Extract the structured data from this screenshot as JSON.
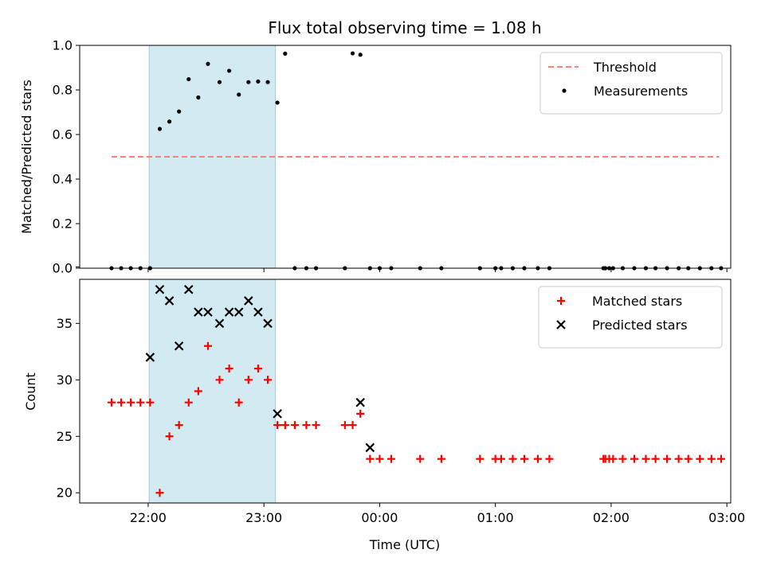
{
  "chart_data": {
    "type": "scatter",
    "title": "Flux total observing time = 1.08 h",
    "x_axis": {
      "label": "Time (UTC)",
      "unit": "minutes after 21:00 UTC",
      "ticks": [
        {
          "value": 60,
          "label": "22:00"
        },
        {
          "value": 120,
          "label": "23:00"
        },
        {
          "value": 180,
          "label": "00:00"
        },
        {
          "value": 240,
          "label": "01:00"
        },
        {
          "value": 300,
          "label": "02:00"
        },
        {
          "value": 360,
          "label": "03:00"
        }
      ],
      "range": [
        24.5,
        362
      ]
    },
    "shaded_interval": {
      "start": 60.5,
      "end": 126,
      "color": "#add8e6"
    },
    "panels": [
      {
        "ylabel": "Matched/Predicted stars",
        "ylim": [
          0,
          1.0
        ],
        "yticks": [
          {
            "value": 0.0,
            "label": "0.0"
          },
          {
            "value": 0.2,
            "label": "0.2"
          },
          {
            "value": 0.4,
            "label": "0.4"
          },
          {
            "value": 0.6,
            "label": "0.6"
          },
          {
            "value": 0.8,
            "label": "0.8"
          },
          {
            "value": 1.0,
            "label": "1.0"
          }
        ],
        "legend": {
          "position": "top-right",
          "entries": [
            "Threshold",
            "Measurements"
          ]
        },
        "series": [
          {
            "name": "Threshold",
            "style": "dashed-line",
            "color": "#ff7f7f",
            "x": [
              41,
              356
            ],
            "y": [
              0.5,
              0.5
            ]
          },
          {
            "name": "Measurements",
            "style": "dot",
            "color": "#000000",
            "x": [
              41,
              46,
              51,
              56,
              61,
              66,
              71,
              76,
              81,
              86,
              91,
              97,
              102,
              107,
              112,
              117,
              122,
              127,
              131,
              136,
              142,
              147,
              162,
              166,
              170,
              175,
              180,
              186,
              201,
              212,
              232,
              240,
              243,
              249,
              255,
              262,
              268,
              296,
              297,
              299,
              301,
              306,
              312,
              318,
              323,
              329,
              335,
              340,
              346,
              352,
              357
            ],
            "y": [
              0,
              0,
              0,
              0,
              0,
              0.625,
              0.658,
              0.703,
              0.848,
              0.766,
              0.917,
              0.835,
              0.886,
              0.779,
              0.835,
              0.838,
              0.835,
              0.743,
              0.963,
              0,
              0,
              0,
              0,
              0.964,
              0.958,
              0,
              0,
              0,
              0,
              0,
              0,
              0,
              0,
              0,
              0,
              0,
              0,
              0,
              0,
              0,
              0,
              0,
              0,
              0,
              0,
              0,
              0,
              0,
              0,
              0,
              0
            ]
          }
        ]
      },
      {
        "ylabel": "Count",
        "ylim": [
          19.1,
          38.9
        ],
        "yticks": [
          {
            "value": 20,
            "label": "20"
          },
          {
            "value": 25,
            "label": "25"
          },
          {
            "value": 30,
            "label": "30"
          },
          {
            "value": 35,
            "label": "35"
          },
          {
            "value": 40,
            "label": ""
          }
        ],
        "legend": {
          "position": "top-right",
          "entries": [
            "Matched stars",
            "Predicted stars"
          ]
        },
        "series": [
          {
            "name": "Matched stars",
            "style": "plus",
            "color": "#ff0000",
            "x": [
              41,
              46,
              51,
              56,
              61,
              66,
              71,
              76,
              81,
              86,
              91,
              97,
              102,
              107,
              112,
              117,
              122,
              127,
              131,
              136,
              142,
              147,
              162,
              166,
              170,
              175,
              180,
              186,
              201,
              212,
              232,
              240,
              243,
              249,
              255,
              262,
              268,
              296,
              297,
              299,
              301,
              306,
              312,
              318,
              323,
              329,
              335,
              340,
              346,
              352,
              357
            ],
            "y": [
              28,
              28,
              28,
              28,
              28,
              20,
              25,
              26,
              28,
              29,
              33,
              30,
              31,
              28,
              30,
              31,
              30,
              26,
              26,
              26,
              26,
              26,
              26,
              26,
              27,
              23,
              23,
              23,
              23,
              23,
              23,
              23,
              23,
              23,
              23,
              23,
              23,
              23,
              23,
              23,
              23,
              23,
              23,
              23,
              23,
              23,
              23,
              23,
              23,
              23,
              23
            ]
          },
          {
            "name": "Predicted stars",
            "style": "x",
            "color": "#000000",
            "x": [
              61,
              66,
              71,
              76,
              81,
              86,
              91,
              97,
              102,
              107,
              112,
              117,
              122,
              127,
              170,
              175
            ],
            "y": [
              32,
              38,
              37,
              33,
              38,
              36,
              36,
              35,
              36,
              36,
              37,
              36,
              35,
              27,
              28,
              24
            ]
          }
        ]
      }
    ]
  }
}
